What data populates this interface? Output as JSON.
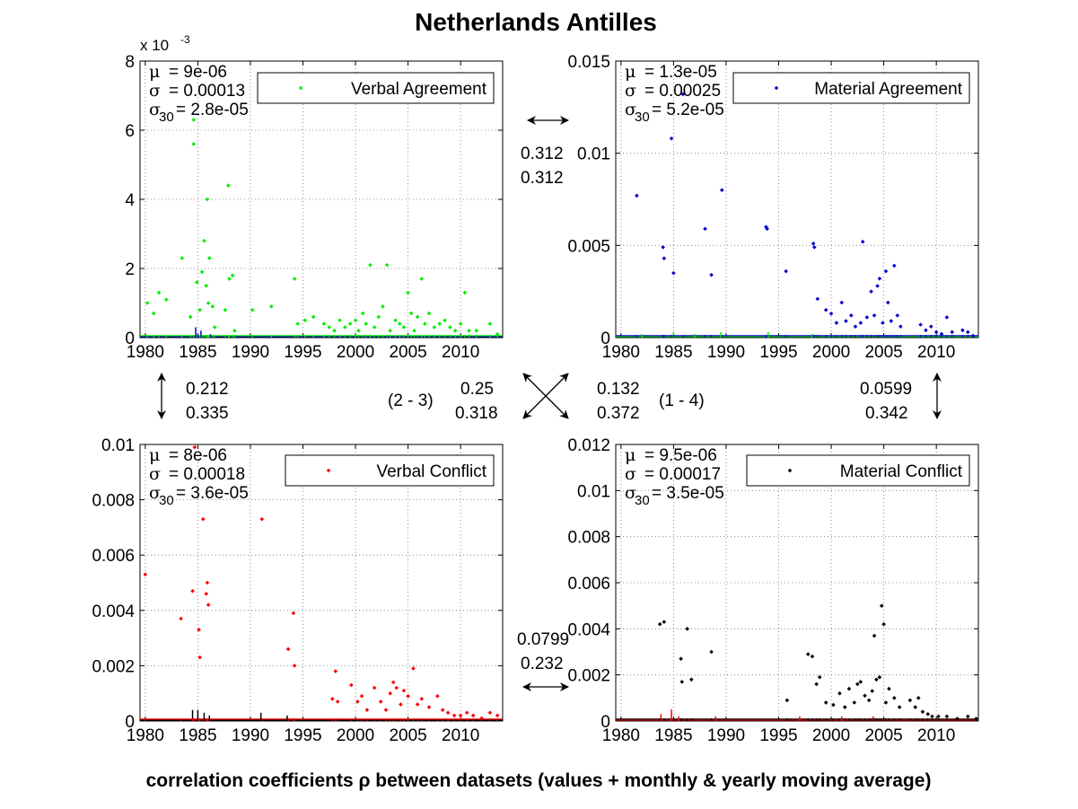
{
  "figure": {
    "title": "Netherlands Antilles",
    "footer": "correlation coefficients ρ between datasets (values + monthly & yearly moving average)"
  },
  "links": {
    "top_horizontal": {
      "v1": "0.312",
      "v2": "0.312"
    },
    "bottom_horizontal": {
      "v1": "0.0799",
      "v2": "0.232"
    },
    "left_vertical": {
      "v1": "0.212",
      "v2": "0.335"
    },
    "right_vertical": {
      "v1": "0.0599",
      "v2": "0.342"
    },
    "diag_left": {
      "label": "(2 - 3)",
      "v1": "0.25",
      "v2": "0.318"
    },
    "diag_right": {
      "label": "(1 - 4)",
      "v1": "0.132",
      "v2": "0.372"
    }
  },
  "chart_data": [
    {
      "type": "scatter",
      "name": "Verbal Agreement",
      "color": "#00ee00",
      "secondary_color": "#0000cc",
      "ylim": [
        0,
        0.008
      ],
      "yticks": [
        "0",
        "2",
        "4",
        "6",
        "8"
      ],
      "exponent_label": "x 10",
      "exponent_power": "-3",
      "xlim": [
        1979.5,
        2014
      ],
      "xticks": [
        "1980",
        "1985",
        "1990",
        "1995",
        "2000",
        "2005",
        "2010"
      ],
      "grid": true,
      "legend": "top-right",
      "stats": {
        "mu": "= 9e-06",
        "sigma": "= 0.00013",
        "sigma30": "= 2.8e-05"
      },
      "points": [
        [
          1980.2,
          0.001
        ],
        [
          1980.8,
          0.0007
        ],
        [
          1981.3,
          0.0013
        ],
        [
          1982,
          0.0011
        ],
        [
          1983.5,
          0.0023
        ],
        [
          1984.3,
          0.0006
        ],
        [
          1984.6,
          0.0063
        ],
        [
          1984.6,
          0.0056
        ],
        [
          1984.9,
          0.0016
        ],
        [
          1985.2,
          0.0008
        ],
        [
          1985.4,
          0.0019
        ],
        [
          1985.6,
          0.0028
        ],
        [
          1985.8,
          0.0015
        ],
        [
          1985.9,
          0.004
        ],
        [
          1986,
          0.001
        ],
        [
          1986.1,
          0.0023
        ],
        [
          1986.4,
          0.0009
        ],
        [
          1986.6,
          0.0003
        ],
        [
          1987.6,
          0.0008
        ],
        [
          1987.9,
          0.0044
        ],
        [
          1988,
          0.0017
        ],
        [
          1988.3,
          0.0018
        ],
        [
          1988.5,
          0.0002
        ],
        [
          1990.2,
          0.0008
        ],
        [
          1992,
          0.0009
        ],
        [
          1994.2,
          0.0017
        ],
        [
          1994.5,
          0.0004
        ],
        [
          1995.2,
          0.0005
        ],
        [
          1996,
          0.0006
        ],
        [
          1997,
          0.0004
        ],
        [
          1997.5,
          0.0003
        ],
        [
          1998,
          0.0002
        ],
        [
          1998.5,
          0.0005
        ],
        [
          1999,
          0.0003
        ],
        [
          1999.5,
          0.0004
        ],
        [
          2000,
          0.0005
        ],
        [
          2000.3,
          0.0002
        ],
        [
          2000.7,
          0.0007
        ],
        [
          2001,
          0.0004
        ],
        [
          2001.4,
          0.0021
        ],
        [
          2001.8,
          0.0003
        ],
        [
          2002.2,
          0.0006
        ],
        [
          2002.6,
          0.0009
        ],
        [
          2003,
          0.0021
        ],
        [
          2003.3,
          0.0002
        ],
        [
          2003.8,
          0.0005
        ],
        [
          2004.2,
          0.0004
        ],
        [
          2004.6,
          0.0003
        ],
        [
          2005,
          0.0013
        ],
        [
          2005.3,
          0.0007
        ],
        [
          2005.6,
          0.0002
        ],
        [
          2005.9,
          0.0006
        ],
        [
          2006.3,
          0.0017
        ],
        [
          2006.6,
          0.0004
        ],
        [
          2007,
          0.0007
        ],
        [
          2007.5,
          0.0003
        ],
        [
          2008,
          0.0004
        ],
        [
          2008.5,
          0.0005
        ],
        [
          2009,
          0.0003
        ],
        [
          2009.5,
          0.0002
        ],
        [
          2010,
          0.0004
        ],
        [
          2010.4,
          0.0013
        ],
        [
          2010.8,
          0.0002
        ],
        [
          2011.5,
          0.0002
        ],
        [
          2012.8,
          0.0004
        ],
        [
          2013.5,
          0.0001
        ]
      ],
      "secondary_spikes": [
        [
          1984.8,
          0.0003
        ],
        [
          1985.3,
          0.0002
        ],
        [
          1986.2,
          0.0001
        ],
        [
          1985,
          0.0001
        ]
      ]
    },
    {
      "type": "scatter",
      "name": "Material Agreement",
      "color": "#0000cc",
      "secondary_color": "#00ee00",
      "ylim": [
        0,
        0.015
      ],
      "yticks": [
        "0",
        "0.005",
        "0.01",
        "0.015"
      ],
      "xlim": [
        1979.5,
        2014
      ],
      "xticks": [
        "1980",
        "1985",
        "1990",
        "1995",
        "2000",
        "2005",
        "2010"
      ],
      "grid": true,
      "legend": "top-right",
      "stats": {
        "mu": "= 1.3e-05",
        "sigma": "= 0.00025",
        "sigma30": "= 5.2e-05"
      },
      "points": [
        [
          1981.5,
          0.0077
        ],
        [
          1984,
          0.0049
        ],
        [
          1984.1,
          0.0043
        ],
        [
          1984.8,
          0.0108
        ],
        [
          1985,
          0.0035
        ],
        [
          1985.9,
          0.0132
        ],
        [
          1988,
          0.0059
        ],
        [
          1988.6,
          0.0034
        ],
        [
          1989.6,
          0.008
        ],
        [
          1993.8,
          0.006
        ],
        [
          1993.9,
          0.0059
        ],
        [
          1995.7,
          0.0036
        ],
        [
          1998.3,
          0.0051
        ],
        [
          1998.4,
          0.0049
        ],
        [
          1998.7,
          0.0021
        ],
        [
          1999.5,
          0.0015
        ],
        [
          2000,
          0.0013
        ],
        [
          2000.5,
          0.0008
        ],
        [
          2001,
          0.0019
        ],
        [
          2001.4,
          0.0009
        ],
        [
          2001.9,
          0.0012
        ],
        [
          2002.3,
          0.0006
        ],
        [
          2002.8,
          0.0008
        ],
        [
          2003,
          0.0052
        ],
        [
          2003.4,
          0.0011
        ],
        [
          2003.8,
          0.0025
        ],
        [
          2004.1,
          0.0012
        ],
        [
          2004.4,
          0.0028
        ],
        [
          2004.6,
          0.0032
        ],
        [
          2004.9,
          0.0008
        ],
        [
          2005.2,
          0.0036
        ],
        [
          2005.4,
          0.0019
        ],
        [
          2005.7,
          0.0009
        ],
        [
          2006,
          0.0039
        ],
        [
          2006.3,
          0.0012
        ],
        [
          2006.6,
          0.0006
        ],
        [
          2008.5,
          0.0007
        ],
        [
          2009,
          0.0004
        ],
        [
          2009.5,
          0.0006
        ],
        [
          2010,
          0.0003
        ],
        [
          2010.5,
          0.0002
        ],
        [
          2011,
          0.0011
        ],
        [
          2011.5,
          0.0003
        ],
        [
          2012.5,
          0.0004
        ],
        [
          2013,
          0.0003
        ],
        [
          2013.5,
          0.0001
        ]
      ],
      "secondary_spikes": [
        [
          1982,
          0.0002
        ],
        [
          1985,
          0.0003
        ],
        [
          1987,
          0.0002
        ],
        [
          1989.5,
          0.0003
        ],
        [
          1994,
          0.0003
        ],
        [
          1998.2,
          0.0002
        ]
      ]
    },
    {
      "type": "scatter",
      "name": "Verbal Conflict",
      "color": "#ff0000",
      "secondary_color": "#000000",
      "ylim": [
        0,
        0.01
      ],
      "yticks": [
        "0",
        "0.002",
        "0.004",
        "0.006",
        "0.008",
        "0.01"
      ],
      "xlim": [
        1979.5,
        2014
      ],
      "xticks": [
        "1980",
        "1985",
        "1990",
        "1995",
        "2000",
        "2005",
        "2010"
      ],
      "grid": true,
      "legend": "top-right",
      "stats": {
        "mu": "= 8e-06",
        "sigma": "= 0.00018",
        "sigma30": "= 3.6e-05"
      },
      "points": [
        [
          1980,
          0.0053
        ],
        [
          1983.4,
          0.0037
        ],
        [
          1984.5,
          0.0047
        ],
        [
          1984.7,
          0.0099
        ],
        [
          1985.1,
          0.0033
        ],
        [
          1985.2,
          0.0023
        ],
        [
          1985.5,
          0.0073
        ],
        [
          1985.8,
          0.0046
        ],
        [
          1985.9,
          0.005
        ],
        [
          1986,
          0.0042
        ],
        [
          1991.1,
          0.0073
        ],
        [
          1993.6,
          0.0026
        ],
        [
          1994.1,
          0.0039
        ],
        [
          1994.2,
          0.002
        ],
        [
          1997.8,
          0.0008
        ],
        [
          1998.1,
          0.0018
        ],
        [
          1998.3,
          0.0007
        ],
        [
          1999.6,
          0.0013
        ],
        [
          2000.2,
          0.0007
        ],
        [
          2000.6,
          0.0009
        ],
        [
          2001.1,
          0.0004
        ],
        [
          2001.8,
          0.0012
        ],
        [
          2002.4,
          0.0007
        ],
        [
          2002.9,
          0.0004
        ],
        [
          2003.3,
          0.001
        ],
        [
          2003.6,
          0.0014
        ],
        [
          2003.9,
          0.0012
        ],
        [
          2004.3,
          0.0006
        ],
        [
          2004.6,
          0.0011
        ],
        [
          2005,
          0.0009
        ],
        [
          2005.5,
          0.0019
        ],
        [
          2005.9,
          0.0006
        ],
        [
          2006.3,
          0.0008
        ],
        [
          2007,
          0.0005
        ],
        [
          2007.8,
          0.0009
        ],
        [
          2008.3,
          0.0004
        ],
        [
          2008.8,
          0.0003
        ],
        [
          2009.4,
          0.0002
        ],
        [
          2010,
          0.0002
        ],
        [
          2010.6,
          0.0003
        ],
        [
          2011.2,
          0.0002
        ],
        [
          2012,
          0.0001
        ],
        [
          2012.8,
          0.0003
        ],
        [
          2013.5,
          0.0002
        ]
      ],
      "secondary_spikes": [
        [
          1984.5,
          0.0004
        ],
        [
          1985,
          0.0004
        ],
        [
          1985.6,
          0.0003
        ],
        [
          1986.1,
          0.0002
        ],
        [
          1991,
          0.0003
        ],
        [
          1993.5,
          0.0002
        ]
      ]
    },
    {
      "type": "scatter",
      "name": "Material Conflict",
      "color": "#000000",
      "secondary_color": "#ff0000",
      "ylim": [
        0,
        0.012
      ],
      "yticks": [
        "0",
        "0.002",
        "0.004",
        "0.006",
        "0.008",
        "0.01",
        "0.012"
      ],
      "xlim": [
        1979.5,
        2014
      ],
      "xticks": [
        "1980",
        "1985",
        "1990",
        "1995",
        "2000",
        "2005",
        "2010"
      ],
      "grid": true,
      "legend": "top-right",
      "stats": {
        "mu": "= 9.5e-06",
        "sigma": "= 0.00017",
        "sigma30": "= 3.5e-05"
      },
      "points": [
        [
          1983.7,
          0.0042
        ],
        [
          1984.1,
          0.0043
        ],
        [
          1985.7,
          0.0027
        ],
        [
          1985.8,
          0.0017
        ],
        [
          1986.3,
          0.004
        ],
        [
          1986.7,
          0.0018
        ],
        [
          1988.6,
          0.003
        ],
        [
          1995.8,
          0.0009
        ],
        [
          1997.8,
          0.0029
        ],
        [
          1998.2,
          0.0028
        ],
        [
          1998.6,
          0.0016
        ],
        [
          1998.9,
          0.0019
        ],
        [
          1999.5,
          0.0008
        ],
        [
          2000.2,
          0.0007
        ],
        [
          2000.8,
          0.0012
        ],
        [
          2001.3,
          0.0006
        ],
        [
          2001.7,
          0.0014
        ],
        [
          2002.2,
          0.0008
        ],
        [
          2002.5,
          0.0016
        ],
        [
          2002.8,
          0.0017
        ],
        [
          2003.2,
          0.0011
        ],
        [
          2003.6,
          0.0009
        ],
        [
          2003.9,
          0.0013
        ],
        [
          2004.1,
          0.0037
        ],
        [
          2004.3,
          0.0018
        ],
        [
          2004.6,
          0.0019
        ],
        [
          2004.8,
          0.005
        ],
        [
          2005,
          0.0042
        ],
        [
          2005.2,
          0.0008
        ],
        [
          2005.5,
          0.0014
        ],
        [
          2006,
          0.001
        ],
        [
          2006.5,
          0.0006
        ],
        [
          2007.5,
          0.0009
        ],
        [
          2008,
          0.0006
        ],
        [
          2008.3,
          0.001
        ],
        [
          2008.7,
          0.0004
        ],
        [
          2009.2,
          0.0003
        ],
        [
          2009.6,
          0.0002
        ],
        [
          2010.2,
          0.0002
        ],
        [
          2011,
          0.0002
        ],
        [
          2012,
          0.0001
        ],
        [
          2013,
          0.0002
        ],
        [
          2013.8,
          0.0001
        ]
      ],
      "secondary_spikes": [
        [
          1983.8,
          0.0003
        ],
        [
          1984.8,
          0.0005
        ],
        [
          1985.5,
          0.0002
        ],
        [
          1989,
          0.0002
        ],
        [
          1997,
          0.0002
        ],
        [
          2001,
          0.0002
        ],
        [
          2004,
          0.0002
        ]
      ]
    }
  ]
}
